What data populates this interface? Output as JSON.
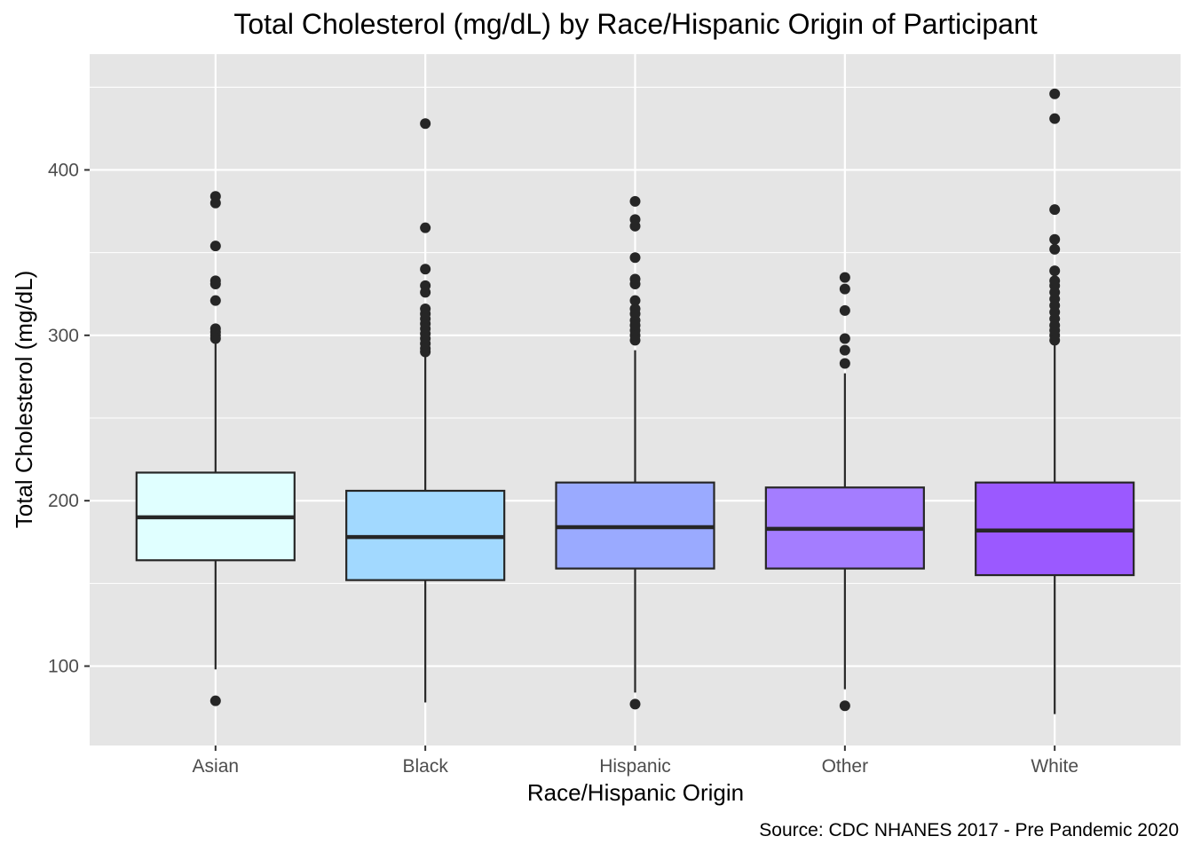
{
  "chart_data": {
    "type": "boxplot",
    "title": "Total Cholesterol (mg/dL) by Race/Hispanic Origin of Participant",
    "xlabel": "Race/Hispanic Origin",
    "ylabel": "Total Cholesterol (mg/dL)",
    "caption": "Source: CDC NHANES 2017 - Pre Pandemic 2020",
    "ylim": [
      52,
      470
    ],
    "yticks": [
      100,
      200,
      300,
      400
    ],
    "grid": true,
    "legend": "none",
    "categories": [
      "Asian",
      "Black",
      "Hispanic",
      "Other",
      "White"
    ],
    "boxes": [
      {
        "category": "Asian",
        "color": "#e0ffff",
        "whisker_low": 98,
        "q1": 164,
        "median": 190,
        "q3": 217,
        "whisker_high": 297,
        "outliers": [
          79,
          298,
          300,
          302,
          304,
          321,
          331,
          333,
          354,
          380,
          384
        ]
      },
      {
        "category": "Black",
        "color": "#a2d9ff",
        "whisker_low": 78,
        "q1": 152,
        "median": 178,
        "q3": 206,
        "whisker_high": 289,
        "outliers": [
          290,
          292,
          295,
          298,
          301,
          304,
          307,
          310,
          313,
          316,
          326,
          330,
          340,
          365,
          428
        ]
      },
      {
        "category": "Hispanic",
        "color": "#9aaaff",
        "whisker_low": 84,
        "q1": 159,
        "median": 184,
        "q3": 211,
        "whisker_high": 291,
        "outliers": [
          77,
          297,
          300,
          303,
          306,
          309,
          313,
          316,
          321,
          331,
          334,
          347,
          366,
          370,
          381
        ]
      },
      {
        "category": "Other",
        "color": "#a47dff",
        "whisker_low": 86,
        "q1": 159,
        "median": 183,
        "q3": 208,
        "whisker_high": 277,
        "outliers": [
          76,
          283,
          291,
          298,
          315,
          328,
          335
        ]
      },
      {
        "category": "White",
        "color": "#9b59ff",
        "whisker_low": 71,
        "q1": 155,
        "median": 182,
        "q3": 211,
        "whisker_high": 295,
        "outliers": [
          297,
          300,
          303,
          306,
          310,
          314,
          318,
          322,
          326,
          330,
          333,
          339,
          352,
          358,
          376,
          431,
          446
        ]
      }
    ]
  }
}
